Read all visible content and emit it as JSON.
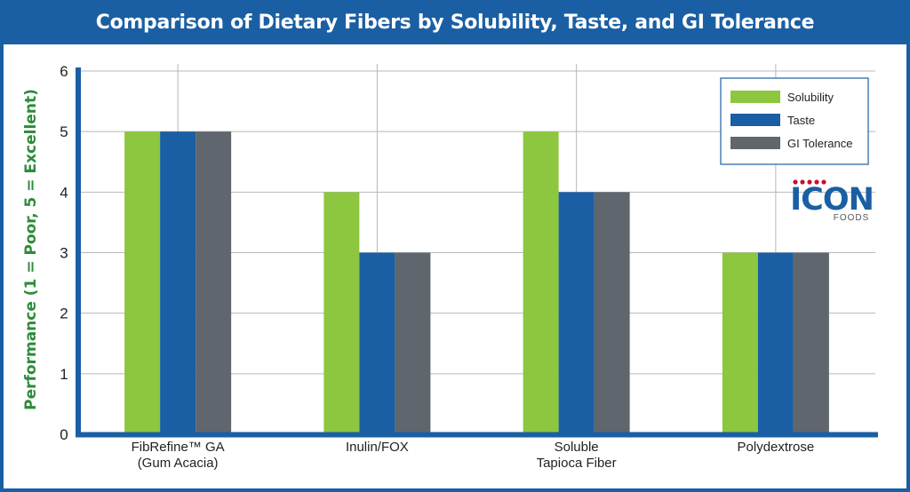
{
  "title": "Comparison of Dietary Fibers by Solubility, Taste, and GI Tolerance",
  "logo": {
    "name": "ICON",
    "sub": "FOODS"
  },
  "colors": {
    "frame": "#1a5fa3",
    "solubility": "#8dc63f",
    "taste": "#1a5fa3",
    "gi": "#5f666d",
    "ylabel": "#2e8b3a",
    "logo_dots": "#c8102e"
  },
  "chart_data": {
    "type": "bar",
    "title": "Comparison of Dietary Fibers by Solubility, Taste, and GI Tolerance",
    "xlabel": "",
    "ylabel": "Performance (1 =  Poor, 5 = Excellent)",
    "ylim": [
      0,
      6
    ],
    "yticks": [
      0,
      1,
      2,
      3,
      4,
      5,
      6
    ],
    "grid": true,
    "legend_position": "top-right",
    "categories": [
      [
        "FibRefine™ GA",
        "(Gum Acacia)"
      ],
      [
        "Inulin/FOX"
      ],
      [
        "Soluble",
        "Tapioca Fiber"
      ],
      [
        "Polydextrose"
      ]
    ],
    "series": [
      {
        "name": "Solubility",
        "color": "#8dc63f",
        "values": [
          5,
          4,
          5,
          3
        ]
      },
      {
        "name": "Taste",
        "color": "#1a5fa3",
        "values": [
          5,
          3,
          4,
          3
        ]
      },
      {
        "name": "GI Tolerance",
        "color": "#5f666d",
        "values": [
          5,
          3,
          4,
          3
        ]
      }
    ]
  }
}
